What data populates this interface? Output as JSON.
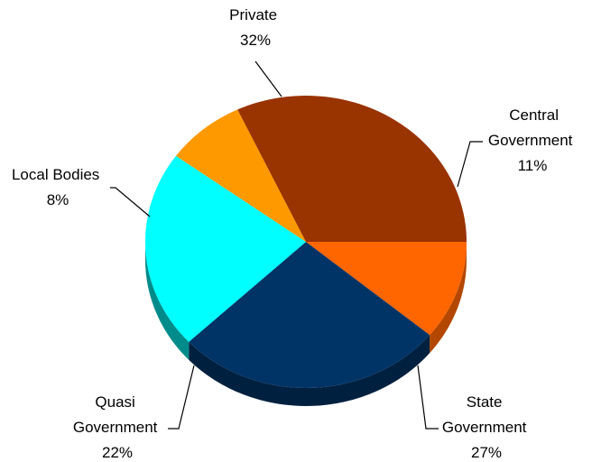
{
  "chart_data": {
    "type": "pie",
    "style": "3d",
    "title": "",
    "slices": [
      {
        "label_lines": [
          "Central",
          "Government"
        ],
        "pct_text": "11%",
        "value": 11,
        "color": "#FF6600",
        "side_color": "#B34700"
      },
      {
        "label_lines": [
          "State",
          "Government"
        ],
        "pct_text": "27%",
        "value": 27,
        "color": "#003366",
        "side_color": "#00203F"
      },
      {
        "label_lines": [
          "Quasi",
          "Government"
        ],
        "pct_text": "22%",
        "value": 22,
        "color": "#00FFFF",
        "side_color": "#008B8B"
      },
      {
        "label_lines": [
          "Local Bodies"
        ],
        "pct_text": "8%",
        "value": 8,
        "color": "#FF9900",
        "side_color": "#B36B00"
      },
      {
        "label_lines": [
          "Private"
        ],
        "pct_text": "32%",
        "value": 32,
        "color": "#993300",
        "side_color": "#6B2400"
      }
    ]
  }
}
